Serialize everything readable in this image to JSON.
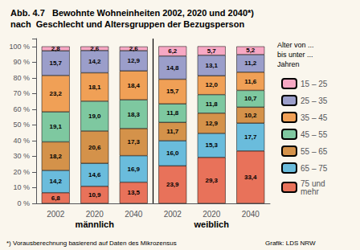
{
  "chart_data": {
    "type": "bar",
    "title": "Abb. 4.7   Bewohnte Wohneinheiten 2002, 2020 und 2040*)",
    "subtitle": "nach  Geschlecht und Altersgruppen der Bezugsperson",
    "categories": [
      "2002",
      "2020",
      "2040",
      "2002",
      "2020",
      "2040"
    ],
    "annotations": [
      "männlich",
      "weiblich"
    ],
    "legend_title": "Alter von ...\nbis unter ...\nJahren",
    "footnote": "*) Vorausberechnung basierend auf Daten des Mikrozensus",
    "source": "Grafik: LDS NRW",
    "background": "#faf6ed",
    "stacked": true,
    "data_labels": true,
    "grid": false,
    "legend": "right",
    "ylim": [
      0,
      105
    ],
    "yticks": [
      {
        "value": 0,
        "label": "0 %"
      },
      {
        "value": 10,
        "label": "10 %"
      },
      {
        "value": 20,
        "label": "20 %"
      },
      {
        "value": 30,
        "label": "30 %"
      },
      {
        "value": 40,
        "label": "40 %"
      },
      {
        "value": 50,
        "label": "50 %"
      },
      {
        "value": 60,
        "label": "60 %"
      },
      {
        "value": 70,
        "label": "70 %"
      },
      {
        "value": 80,
        "label": "80 %"
      },
      {
        "value": 90,
        "label": "90 %"
      },
      {
        "value": 100,
        "label": "100 %"
      }
    ],
    "series": [
      {
        "name": "75 und\nmehr",
        "color": "#e8725a",
        "values": [
          6.8,
          10.9,
          13.5,
          23.9,
          29.3,
          33.4
        ],
        "value_labels": [
          "6,8",
          "10,9",
          "13,5",
          "23,9",
          "29,3",
          "33,4"
        ]
      },
      {
        "name": "65 – 75",
        "color": "#6abcdc",
        "values": [
          14.2,
          14.6,
          16.9,
          16.0,
          15.3,
          17.7
        ],
        "value_labels": [
          "14,2",
          "14,6",
          "16,9",
          "16,0",
          "15,3",
          "17,7"
        ]
      },
      {
        "name": "55 – 65",
        "color": "#d4924a",
        "values": [
          18.2,
          20.6,
          17.3,
          11.7,
          12.9,
          10.2
        ],
        "value_labels": [
          "18,2",
          "20,6",
          "17,3",
          "11,7",
          "12,9",
          "10,2"
        ]
      },
      {
        "name": "45 – 55",
        "color": "#7ec8a0",
        "values": [
          19.1,
          19.0,
          18.3,
          11.8,
          11.8,
          10.7
        ],
        "value_labels": [
          "19,1",
          "19,0",
          "18,3",
          "11,8",
          "11,8",
          "10,7"
        ]
      },
      {
        "name": "35 – 45",
        "color": "#f0a056",
        "values": [
          23.2,
          18.1,
          18.4,
          15.7,
          12.0,
          11.6
        ],
        "value_labels": [
          "23,2",
          "18,1",
          "18,4",
          "15,7",
          "12,0",
          "11,6"
        ]
      },
      {
        "name": "25 – 35",
        "color": "#9b9eca",
        "values": [
          15.7,
          14.2,
          12.9,
          14.8,
          13.1,
          11.2
        ],
        "value_labels": [
          "15,7",
          "14,2",
          "12,9",
          "14,8",
          "13,1",
          "11,2"
        ]
      },
      {
        "name": "15 – 25",
        "color": "#f7a8c4",
        "values": [
          2.8,
          2.6,
          2.6,
          6.2,
          5.7,
          5.2
        ],
        "value_labels": [
          "2,8",
          "2,6",
          "2,6",
          "6,2",
          "5,7",
          "5,2"
        ]
      }
    ]
  }
}
